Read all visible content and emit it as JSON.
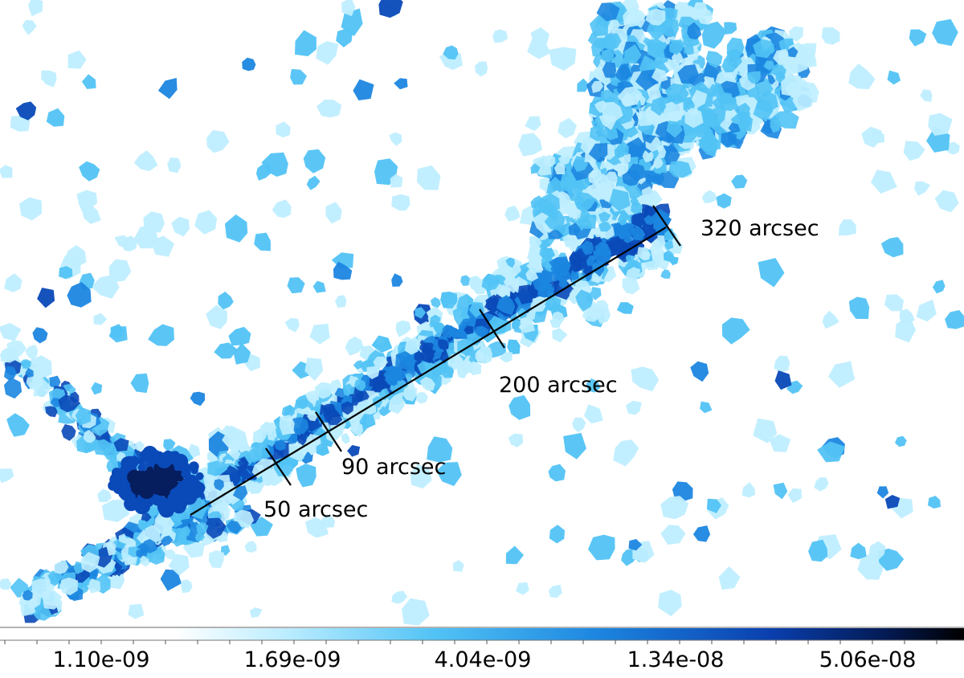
{
  "image": {
    "kind": "x-ray-sky-map",
    "background": "#ffffff"
  },
  "annotations": {
    "markers": [
      {
        "label": "50 arcsec"
      },
      {
        "label": "90 arcsec"
      },
      {
        "label": "200 arcsec"
      },
      {
        "label": "320 arcsec"
      }
    ]
  },
  "colorbar": {
    "tick_labels": [
      "1.10e-09",
      "1.69e-09",
      "4.04e-09",
      "1.34e-08",
      "5.06e-08"
    ],
    "colors": [
      "#ffffff",
      "#b9ecff",
      "#28a6f0",
      "#0a4fc8",
      "#000000"
    ]
  },
  "colors": {
    "light": "#bfeeff",
    "mid": "#52c3f5",
    "strong": "#1c86e0",
    "deep": "#0a49b8",
    "darkest": "#061d5e",
    "line": "#000000"
  }
}
